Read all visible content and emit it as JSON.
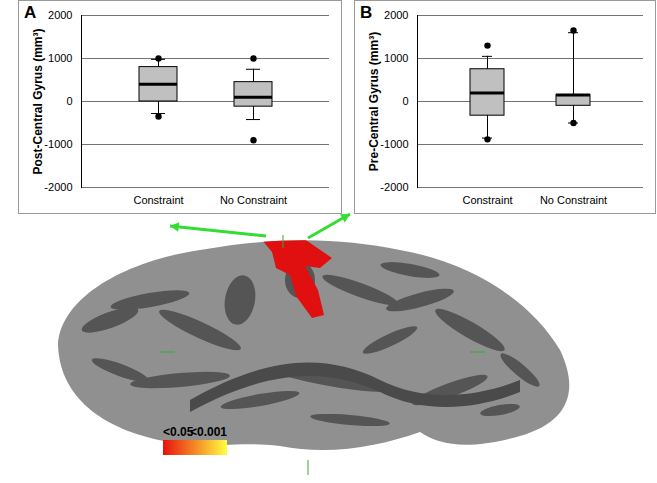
{
  "chart_data": [
    {
      "type": "box",
      "panel": "A",
      "y_label": "Post-Central Gyrus (mm³)",
      "categories": [
        "Constraint",
        "No Constraint"
      ],
      "whisker_low": [
        -280,
        -420
      ],
      "q1": [
        0,
        -120
      ],
      "median": [
        400,
        100
      ],
      "q3": [
        800,
        450
      ],
      "whisker_high": [
        980,
        750
      ],
      "outliers": [
        [
          -350,
          1000
        ],
        [
          -900,
          1000
        ]
      ],
      "ylim": [
        -2000,
        2000
      ],
      "yticks": [
        -2000,
        -1000,
        0,
        1000,
        2000
      ],
      "grid": true,
      "color": "#c0c0c0"
    },
    {
      "type": "box",
      "panel": "B",
      "y_label": "Pre-Central Gyrus (mm³)",
      "categories": [
        "Constraint",
        "No Constraint"
      ],
      "whisker_low": [
        -850,
        -500
      ],
      "q1": [
        -330,
        -100
      ],
      "median": [
        200,
        150
      ],
      "q3": [
        750,
        150
      ],
      "whisker_high": [
        1050,
        1600
      ],
      "outliers": [
        [
          -880,
          1300
        ],
        [
          -500,
          1650
        ]
      ],
      "ylim": [
        -2000,
        2000
      ],
      "yticks": [
        -2000,
        -1000,
        0,
        1000,
        2000
      ],
      "grid": true,
      "color": "#c0c0c0"
    }
  ],
  "colorbar": {
    "labels": [
      "<0.05",
      "<0.001"
    ],
    "colors": [
      "#e8120c",
      "#ffff40"
    ]
  }
}
